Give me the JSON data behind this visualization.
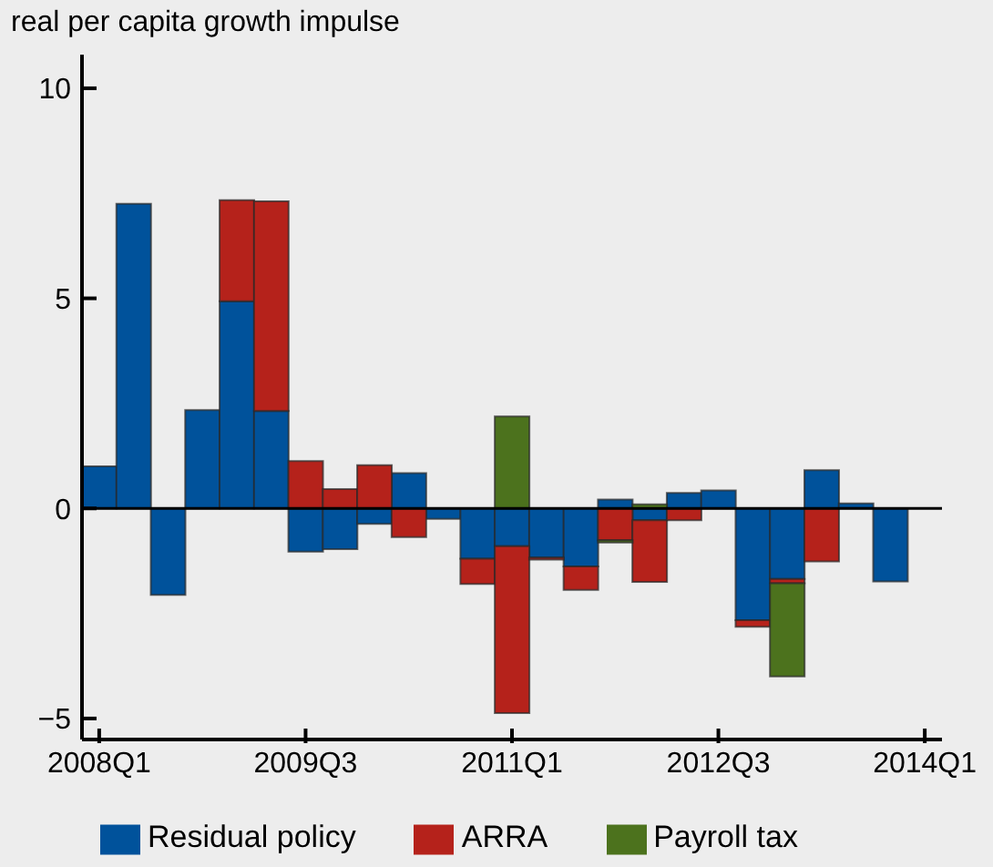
{
  "chart_data": {
    "type": "bar",
    "stacked": true,
    "ylabel": "real per capita growth impulse",
    "categories": [
      "2008Q1",
      null,
      null,
      null,
      null,
      null,
      "2009Q3",
      null,
      null,
      null,
      null,
      null,
      "2011Q1",
      null,
      null,
      null,
      null,
      null,
      "2012Q3",
      null,
      null,
      null,
      null,
      null,
      "2014Q1"
    ],
    "series": [
      {
        "name": "Residual policy",
        "color": "#00529b",
        "values": [
          1.0,
          7.25,
          -2.06,
          2.34,
          4.93,
          2.32,
          -1.03,
          -0.97,
          -0.37,
          0.84,
          -0.25,
          -1.2,
          -0.9,
          -1.17,
          -1.38,
          0.21,
          -0.28,
          0.37,
          0.43,
          -2.66,
          -1.68,
          0.91,
          0.12,
          -1.74,
          null
        ]
      },
      {
        "name": "ARRA",
        "color": "#b5221b",
        "values": [
          null,
          null,
          null,
          null,
          2.41,
          4.99,
          1.13,
          0.46,
          1.03,
          -0.68,
          null,
          -0.6,
          -3.97,
          -0.05,
          -0.56,
          -0.76,
          -1.47,
          -0.28,
          null,
          -0.16,
          -0.1,
          -1.26,
          null,
          null,
          null
        ]
      },
      {
        "name": "Payroll tax",
        "color": "#4c721d",
        "values": [
          null,
          null,
          null,
          null,
          null,
          null,
          null,
          null,
          null,
          null,
          null,
          null,
          2.19,
          null,
          null,
          -0.05,
          0.1,
          null,
          null,
          null,
          -2.22,
          null,
          null,
          null,
          null
        ]
      }
    ],
    "ylim": [
      -5.5,
      10.8
    ],
    "yticks": [
      {
        "value": -5,
        "label": "−5"
      },
      0,
      5,
      10
    ],
    "ref_lines": [
      {
        "axis": "y",
        "value": 0,
        "color": "#000000"
      }
    ],
    "legend": "bottom"
  }
}
